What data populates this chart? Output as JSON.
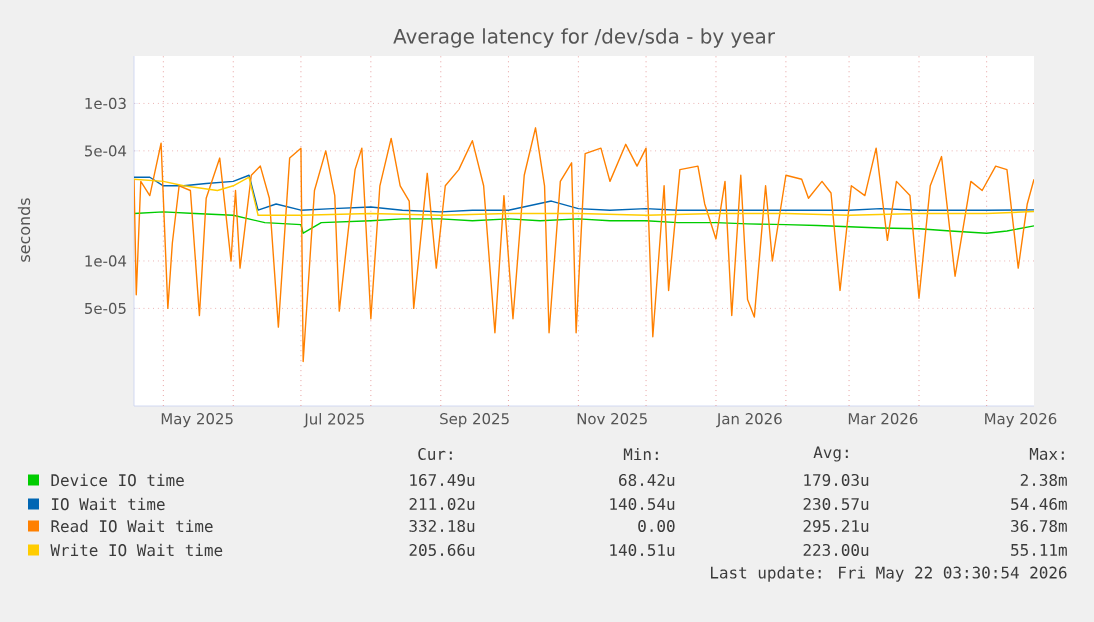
{
  "chart_data": {
    "type": "line",
    "title": "Average latency for /dev/sda - by year",
    "ylabel": "seconds",
    "xlim": [
      "2025-04-18",
      "2026-05-22"
    ],
    "ylim": [
      1.2e-05,
      0.002
    ],
    "log": "y",
    "grid": true,
    "legend": "bottom",
    "xticks": [
      {
        "value": "2025-05-16",
        "label": "May 2025"
      },
      {
        "value": "2025-07-16",
        "label": "Jul 2025"
      },
      {
        "value": "2025-09-16",
        "label": "Sep 2025"
      },
      {
        "value": "2025-11-16",
        "label": "Nov 2025"
      },
      {
        "value": "2026-01-16",
        "label": "Jan 2026"
      },
      {
        "value": "2026-03-16",
        "label": "Mar 2026"
      },
      {
        "value": "2026-05-16",
        "label": "May 2026"
      },
      {
        "value": "2025-05-01",
        "label": null
      },
      {
        "value": "2025-06-01",
        "label": null
      },
      {
        "value": "2025-07-01",
        "label": null
      },
      {
        "value": "2025-08-01",
        "label": null
      },
      {
        "value": "2025-09-01",
        "label": null
      },
      {
        "value": "2025-10-01",
        "label": null
      },
      {
        "value": "2025-11-01",
        "label": null
      },
      {
        "value": "2025-12-01",
        "label": null
      },
      {
        "value": "2026-01-01",
        "label": null
      },
      {
        "value": "2026-02-01",
        "label": null
      },
      {
        "value": "2026-03-01",
        "label": null
      },
      {
        "value": "2026-04-01",
        "label": null
      },
      {
        "value": "2026-05-01",
        "label": null
      }
    ],
    "yticks": [
      {
        "value": 0.001,
        "label": "1e-03"
      },
      {
        "value": 0.0005,
        "label": "5e-04"
      },
      {
        "value": 0.0001,
        "label": "1e-04"
      },
      {
        "value": 5e-05,
        "label": "5e-05"
      }
    ],
    "series": [
      {
        "name": "Device IO time",
        "color": "#00cc00",
        "x": [
          "2025-04-18",
          "2025-05-01",
          "2025-05-15",
          "2025-06-01",
          "2025-06-15",
          "2025-07-01",
          "2025-07-02",
          "2025-07-10",
          "2025-08-01",
          "2025-08-15",
          "2025-09-01",
          "2025-09-15",
          "2025-10-01",
          "2025-10-15",
          "2025-11-01",
          "2025-11-15",
          "2025-12-01",
          "2025-12-15",
          "2026-01-01",
          "2026-01-15",
          "2026-02-01",
          "2026-02-15",
          "2026-03-01",
          "2026-03-15",
          "2026-04-01",
          "2026-04-15",
          "2026-05-01",
          "2026-05-10",
          "2026-05-22"
        ],
        "values": [
          0.0002,
          0.000205,
          0.0002,
          0.000195,
          0.000175,
          0.00017,
          0.00015,
          0.000175,
          0.00018,
          0.000185,
          0.000185,
          0.00018,
          0.000185,
          0.00018,
          0.000185,
          0.00018,
          0.00018,
          0.000175,
          0.000175,
          0.000172,
          0.00017,
          0.000168,
          0.000165,
          0.000162,
          0.00016,
          0.000155,
          0.00015,
          0.000155,
          0.000167
        ]
      },
      {
        "name": "IO Wait time",
        "color": "#0066b3",
        "x": [
          "2025-04-18",
          "2025-04-25",
          "2025-05-01",
          "2025-05-10",
          "2025-05-20",
          "2025-06-01",
          "2025-06-08",
          "2025-06-12",
          "2025-06-20",
          "2025-07-01",
          "2025-07-15",
          "2025-08-01",
          "2025-08-15",
          "2025-09-01",
          "2025-09-15",
          "2025-10-01",
          "2025-10-20",
          "2025-11-01",
          "2025-11-15",
          "2025-12-01",
          "2025-12-15",
          "2026-01-01",
          "2026-01-15",
          "2026-02-01",
          "2026-02-15",
          "2026-03-01",
          "2026-03-15",
          "2026-04-01",
          "2026-04-15",
          "2026-05-01",
          "2026-05-22"
        ],
        "values": [
          0.00034,
          0.00034,
          0.0003,
          0.0003,
          0.00031,
          0.00032,
          0.00035,
          0.00021,
          0.00023,
          0.00021,
          0.000215,
          0.00022,
          0.00021,
          0.000205,
          0.00021,
          0.00021,
          0.00024,
          0.000215,
          0.00021,
          0.000215,
          0.00021,
          0.00021,
          0.00021,
          0.00021,
          0.00021,
          0.00021,
          0.000215,
          0.00021,
          0.00021,
          0.00021,
          0.000211
        ]
      },
      {
        "name": "Read IO Wait time",
        "color": "#ff8000",
        "x": [
          "2025-04-18",
          "2025-04-19",
          "2025-04-21",
          "2025-04-25",
          "2025-04-30",
          "2025-05-03",
          "2025-05-05",
          "2025-05-08",
          "2025-05-13",
          "2025-05-17",
          "2025-05-20",
          "2025-05-26",
          "2025-05-31",
          "2025-06-02",
          "2025-06-04",
          "2025-06-09",
          "2025-06-13",
          "2025-06-17",
          "2025-06-21",
          "2025-06-26",
          "2025-07-01",
          "2025-07-02",
          "2025-07-07",
          "2025-07-12",
          "2025-07-16",
          "2025-07-18",
          "2025-07-25",
          "2025-07-28",
          "2025-08-01",
          "2025-08-05",
          "2025-08-10",
          "2025-08-14",
          "2025-08-18",
          "2025-08-20",
          "2025-08-26",
          "2025-08-30",
          "2025-09-03",
          "2025-09-09",
          "2025-09-15",
          "2025-09-20",
          "2025-09-25",
          "2025-09-29",
          "2025-10-03",
          "2025-10-08",
          "2025-10-13",
          "2025-10-17",
          "2025-10-19",
          "2025-10-24",
          "2025-10-29",
          "2025-10-31",
          "2025-11-04",
          "2025-11-11",
          "2025-11-15",
          "2025-11-22",
          "2025-11-27",
          "2025-12-01",
          "2025-12-04",
          "2025-12-09",
          "2025-12-11",
          "2025-12-16",
          "2025-12-24",
          "2025-12-27",
          "2026-01-01",
          "2026-01-05",
          "2026-01-08",
          "2026-01-12",
          "2026-01-15",
          "2026-01-18",
          "2026-01-23",
          "2026-01-26",
          "2026-02-01",
          "2026-02-08",
          "2026-02-11",
          "2026-02-17",
          "2026-02-21",
          "2026-02-25",
          "2026-03-02",
          "2026-03-08",
          "2026-03-13",
          "2026-03-18",
          "2026-03-22",
          "2026-03-28",
          "2026-04-01",
          "2026-04-06",
          "2026-04-11",
          "2026-04-17",
          "2026-04-24",
          "2026-04-29",
          "2026-05-05",
          "2026-05-10",
          "2026-05-15",
          "2026-05-19",
          "2026-05-22"
        ],
        "values": [
          0.00033,
          6.1e-05,
          0.00032,
          0.00026,
          0.00056,
          5e-05,
          0.00013,
          0.0003,
          0.00028,
          4.5e-05,
          0.00025,
          0.00045,
          0.0001,
          0.00028,
          9e-05,
          0.00035,
          0.0004,
          0.00025,
          3.8e-05,
          0.00045,
          0.00052,
          2.3e-05,
          0.00028,
          0.0005,
          0.00026,
          4.8e-05,
          0.00038,
          0.00052,
          4.3e-05,
          0.0003,
          0.0006,
          0.0003,
          0.00024,
          5e-05,
          0.00036,
          9e-05,
          0.0003,
          0.00038,
          0.00058,
          0.0003,
          3.5e-05,
          0.00026,
          4.3e-05,
          0.00035,
          0.0007,
          0.0003,
          3.5e-05,
          0.00032,
          0.00042,
          3.5e-05,
          0.00048,
          0.00052,
          0.00032,
          0.00055,
          0.0004,
          0.00052,
          3.3e-05,
          0.0003,
          6.5e-05,
          0.00038,
          0.0004,
          0.00023,
          0.000138,
          0.00032,
          4.5e-05,
          0.00035,
          5.7e-05,
          4.4e-05,
          0.0003,
          0.0001,
          0.00035,
          0.00033,
          0.00025,
          0.00032,
          0.00027,
          6.5e-05,
          0.0003,
          0.00026,
          0.00052,
          0.000135,
          0.00032,
          0.00026,
          5.8e-05,
          0.0003,
          0.00046,
          8e-05,
          0.00032,
          0.00028,
          0.0004,
          0.00038,
          9e-05,
          0.00023,
          0.00033
        ]
      },
      {
        "name": "Write IO Wait time",
        "color": "#ffcc00",
        "x": [
          "2025-04-18",
          "2025-05-01",
          "2025-05-10",
          "2025-05-25",
          "2025-06-01",
          "2025-06-08",
          "2025-06-12",
          "2025-07-01",
          "2025-08-01",
          "2025-09-01",
          "2025-10-01",
          "2025-11-01",
          "2025-12-01",
          "2026-01-01",
          "2026-02-01",
          "2026-03-01",
          "2026-04-01",
          "2026-05-01",
          "2026-05-22"
        ],
        "values": [
          0.00033,
          0.00032,
          0.0003,
          0.00028,
          0.0003,
          0.00034,
          0.000195,
          0.000195,
          0.0002,
          0.000195,
          0.0002,
          0.0002,
          0.000195,
          0.0002,
          0.0002,
          0.000195,
          0.0002,
          0.0002,
          0.000206
        ]
      }
    ],
    "annotations": [
      "Cur:",
      "Min:",
      "Avg:",
      "Max:",
      "167.49u",
      "68.42u",
      "179.03u",
      "2.38m",
      "211.02u",
      "140.54u",
      "230.57u",
      "54.46m",
      "332.18u",
      "0.00",
      "295.21u",
      "36.78m",
      "205.66u",
      "140.51u",
      "223.00u",
      "55.11m",
      "Last update: Fri May 22 03:30:54 2026"
    ]
  }
}
